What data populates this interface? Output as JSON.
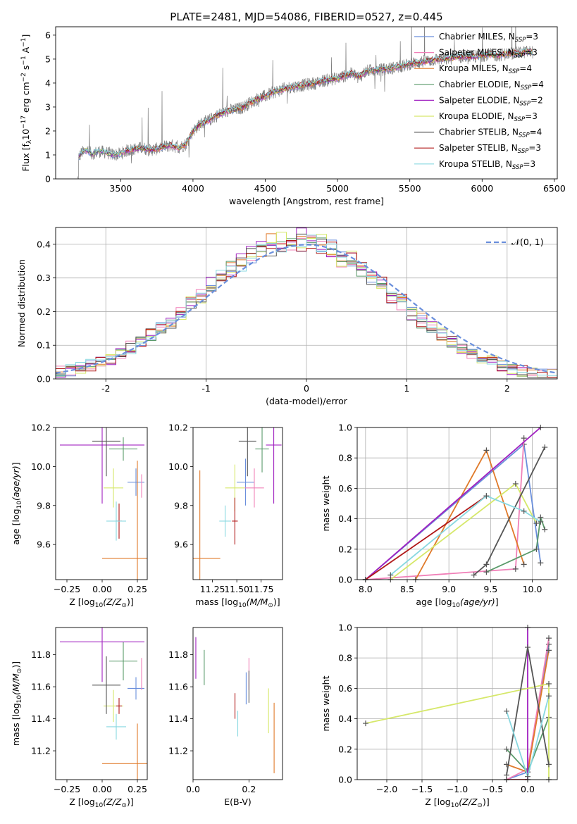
{
  "figure_title": "PLATE=2481, MJD=54086, FIBERID=0527, z=0.445",
  "colors": {
    "Chabrier MILES": "#6a8fdc",
    "Salpeter MILES": "#f080b8",
    "Kroupa MILES": "#e07a2a",
    "Chabrier ELODIE": "#5a9a6a",
    "Salpeter ELODIE": "#a020c0",
    "Kroupa ELODIE": "#d6e86a",
    "Chabrier STELIB": "#555555",
    "Salpeter STELIB": "#b01818",
    "Kroupa STELIB": "#88d8e0",
    "normal_curve": "#6a8fdc",
    "data_spectrum": "#7f7f7f"
  },
  "chart_data": [
    {
      "type": "line",
      "panel": "spectrum",
      "title": "PLATE=2481, MJD=54086, FIBERID=0527, z=0.445",
      "xlabel": "wavelength [Angstrom, rest frame]",
      "ylabel": "Flux [f_λ 10^-17 erg cm^-2 s^-1 A^-1]",
      "xlim": [
        3050,
        6520
      ],
      "ylim": [
        0,
        6.35
      ],
      "xticks": [
        3500,
        4000,
        4500,
        5000,
        5500,
        6000,
        6500
      ],
      "yticks": [
        0,
        1,
        2,
        3,
        4,
        5,
        6
      ],
      "legend_position": "upper-right",
      "series": [
        {
          "name": "Chabrier MILES, N_SSP=3",
          "model": "Chabrier MILES"
        },
        {
          "name": "Salpeter MILES, N_SSP=3",
          "model": "Salpeter MILES"
        },
        {
          "name": "Kroupa MILES, N_SSP=4",
          "model": "Kroupa MILES"
        },
        {
          "name": "Chabrier ELODIE, N_SSP=4",
          "model": "Chabrier ELODIE"
        },
        {
          "name": "Salpeter ELODIE, N_SSP=2",
          "model": "Salpeter ELODIE"
        },
        {
          "name": "Kroupa ELODIE, N_SSP=3",
          "model": "Kroupa ELODIE"
        },
        {
          "name": "Chabrier STELIB, N_SSP=4",
          "model": "Chabrier STELIB"
        },
        {
          "name": "Salpeter STELIB, N_SSP=3",
          "model": "Salpeter STELIB"
        },
        {
          "name": "Kroupa STELIB, N_SSP=3",
          "model": "Kroupa STELIB"
        }
      ],
      "continuum": {
        "x": [
          3200,
          3210,
          3230,
          3260,
          3300,
          3350,
          3400,
          3450,
          3500,
          3550,
          3600,
          3650,
          3700,
          3750,
          3800,
          3850,
          3900,
          3950,
          4000,
          4050,
          4100,
          4150,
          4200,
          4250,
          4300,
          4350,
          4400,
          4450,
          4500,
          4550,
          4600,
          4650,
          4700,
          4750,
          4800,
          4850,
          4900,
          4950,
          5000,
          5050,
          5100,
          5150,
          5200,
          5250,
          5300,
          5350,
          5400,
          5450,
          5500,
          5550,
          5600,
          5650,
          5700,
          5750,
          5800,
          5850,
          5900,
          5950,
          6000,
          6050,
          6100,
          6150,
          6200,
          6250,
          6300,
          6350
        ],
        "y": [
          0,
          0.9,
          1.1,
          1.2,
          1.05,
          1.15,
          1.1,
          1.0,
          1.05,
          1.2,
          1.25,
          1.3,
          1.2,
          1.25,
          1.35,
          1.4,
          1.3,
          1.45,
          2.0,
          2.3,
          2.4,
          2.6,
          2.75,
          2.85,
          2.9,
          3.0,
          3.2,
          3.35,
          3.45,
          3.6,
          3.7,
          3.8,
          3.85,
          3.9,
          3.95,
          4.0,
          4.1,
          4.15,
          4.2,
          4.3,
          4.4,
          4.25,
          4.5,
          4.55,
          4.55,
          4.6,
          4.65,
          4.7,
          4.8,
          4.85,
          4.9,
          4.95,
          5.0,
          5.0,
          5.05,
          5.1,
          5.1,
          5.1,
          5.15,
          5.2,
          5.15,
          5.2,
          5.25,
          5.25,
          5.3,
          5.3
        ]
      }
    },
    {
      "type": "bar",
      "panel": "residual-histogram",
      "xlabel": "(data-model)/error",
      "ylabel": "Normed distribution",
      "xlim": [
        -2.5,
        2.5
      ],
      "ylim": [
        0,
        0.45
      ],
      "xticks": [
        -2,
        -1,
        0,
        1,
        2
      ],
      "yticks": [
        0.0,
        0.1,
        0.2,
        0.3,
        0.4
      ],
      "grid": true,
      "legend_position": "upper-right",
      "legend": "𝒩(0, 1)",
      "normal_curve": {
        "mean": 0,
        "std": 1
      },
      "bins": {
        "start": -2.5,
        "width": 0.1,
        "count": 50
      }
    },
    {
      "type": "scatter",
      "panel": "age-vs-Z",
      "xlabel": "Z [log10(Z/Z⊙)]",
      "ylabel": "age [log10(age/yr)]",
      "xlim": [
        -0.33,
        0.32
      ],
      "ylim": [
        9.42,
        10.2
      ],
      "xticks": [
        -0.25,
        0.0,
        0.25
      ],
      "xtick_labels": [
        "−0.25",
        "0.00",
        "0.25"
      ],
      "yticks": [
        9.6,
        9.8,
        10.0,
        10.2
      ],
      "ytick_labels": [
        "9.6",
        "9.8",
        "10.0",
        "10.2"
      ],
      "points": [
        {
          "model": "Chabrier MILES",
          "x": 0.24,
          "y": 9.92,
          "xerr": 0.06,
          "yerr": 0.07
        },
        {
          "model": "Salpeter MILES",
          "x": 0.28,
          "y": 9.9,
          "xerr": 0.0,
          "yerr": 0.06
        },
        {
          "model": "Kroupa MILES",
          "x": 0.25,
          "y": 9.53,
          "xerr": 0.25,
          "yerr": 0.5
        },
        {
          "model": "Chabrier ELODIE",
          "x": 0.15,
          "y": 10.09,
          "xerr": 0.1,
          "yerr": 0.06
        },
        {
          "model": "Salpeter ELODIE",
          "x": 0.0,
          "y": 10.11,
          "xerr": 0.3,
          "yerr": 0.3
        },
        {
          "model": "Kroupa ELODIE",
          "x": 0.08,
          "y": 9.89,
          "xerr": 0.07,
          "yerr": 0.1
        },
        {
          "model": "Chabrier STELIB",
          "x": 0.03,
          "y": 10.13,
          "xerr": 0.1,
          "yerr": 0.18
        },
        {
          "model": "Salpeter STELIB",
          "x": 0.12,
          "y": 9.72,
          "xerr": 0.02,
          "yerr": 0.09
        },
        {
          "model": "Kroupa STELIB",
          "x": 0.1,
          "y": 9.72,
          "xerr": 0.07,
          "yerr": 0.1
        }
      ]
    },
    {
      "type": "scatter",
      "panel": "age-vs-mass",
      "xlabel": "mass [log10(M/M⊙)]",
      "ylabel": "",
      "xlim": [
        11.05,
        11.97
      ],
      "ylim": [
        9.42,
        10.2
      ],
      "xticks": [
        11.25,
        11.5,
        11.75
      ],
      "xtick_labels": [
        "11.25",
        "11.50",
        "11.75"
      ],
      "yticks": [
        9.6,
        9.8,
        10.0,
        10.2
      ],
      "ytick_labels": [
        "9.6",
        "9.8",
        "10.0",
        "10.2"
      ],
      "points": [
        {
          "model": "Chabrier MILES",
          "x": 11.59,
          "y": 9.92,
          "xerr": 0.09,
          "yerr": 0.12
        },
        {
          "model": "Salpeter MILES",
          "x": 11.68,
          "y": 9.89,
          "xerr": 0.1,
          "yerr": 0.1
        },
        {
          "model": "Kroupa MILES",
          "x": 11.12,
          "y": 9.53,
          "xerr": 0.21,
          "yerr": 0.45
        },
        {
          "model": "Chabrier ELODIE",
          "x": 11.76,
          "y": 10.09,
          "xerr": 0.07,
          "yerr": 0.12
        },
        {
          "model": "Salpeter ELODIE",
          "x": 11.88,
          "y": 10.11,
          "xerr": 0.08,
          "yerr": 0.3
        },
        {
          "model": "Kroupa ELODIE",
          "x": 11.48,
          "y": 9.89,
          "xerr": 0.1,
          "yerr": 0.12
        },
        {
          "model": "Chabrier STELIB",
          "x": 11.61,
          "y": 10.13,
          "xerr": 0.09,
          "yerr": 0.18
        },
        {
          "model": "Salpeter STELIB",
          "x": 11.48,
          "y": 9.72,
          "xerr": 0.03,
          "yerr": 0.12
        },
        {
          "model": "Kroupa STELIB",
          "x": 11.38,
          "y": 9.72,
          "xerr": 0.06,
          "yerr": 0.08
        }
      ]
    },
    {
      "type": "line",
      "panel": "mass-weight-vs-age",
      "xlabel": "age [log10(age/yr)]",
      "ylabel": "mass weight",
      "xlim": [
        7.9,
        10.3
      ],
      "ylim": [
        0,
        1
      ],
      "xticks": [
        8.0,
        8.5,
        9.0,
        9.5,
        10.0
      ],
      "xtick_labels": [
        "8.0",
        "8.5",
        "9.0",
        "9.5",
        "10.0"
      ],
      "yticks": [
        0.0,
        0.2,
        0.4,
        0.6,
        0.8,
        1.0
      ],
      "ytick_labels": [
        "0.0",
        "0.2",
        "0.4",
        "0.6",
        "0.8",
        "1.0"
      ],
      "grid": true,
      "series": [
        {
          "model": "Chabrier MILES",
          "x": [
            8.0,
            9.9,
            10.1
          ],
          "y": [
            0.0,
            0.89,
            0.11
          ]
        },
        {
          "model": "Salpeter MILES",
          "x": [
            8.0,
            9.8,
            9.9
          ],
          "y": [
            0.0,
            0.07,
            0.93
          ]
        },
        {
          "model": "Kroupa MILES",
          "x": [
            8.6,
            9.45,
            9.9
          ],
          "y": [
            0.0,
            0.85,
            0.1
          ]
        },
        {
          "model": "Chabrier ELODIE",
          "x": [
            9.45,
            10.05,
            10.1,
            10.15
          ],
          "y": [
            0.05,
            0.2,
            0.41,
            0.33
          ]
        },
        {
          "model": "Salpeter ELODIE",
          "x": [
            8.0,
            10.1
          ],
          "y": [
            0.0,
            1.0
          ]
        },
        {
          "model": "Kroupa ELODIE",
          "x": [
            8.3,
            9.8,
            10.05
          ],
          "y": [
            0.0,
            0.63,
            0.37
          ]
        },
        {
          "model": "Chabrier STELIB",
          "x": [
            9.3,
            9.45,
            10.15
          ],
          "y": [
            0.03,
            0.1,
            0.87
          ]
        },
        {
          "model": "Salpeter STELIB",
          "x": [
            8.0,
            9.45
          ],
          "y": [
            0.0,
            0.55
          ]
        },
        {
          "model": "Kroupa STELIB",
          "x": [
            8.3,
            9.45,
            9.9,
            10.1
          ],
          "y": [
            0.03,
            0.55,
            0.45,
            0.38
          ]
        }
      ]
    },
    {
      "type": "scatter",
      "panel": "mass-vs-Z",
      "xlabel": "Z [log10(Z/Z⊙)]",
      "ylabel": "mass [log10(M/M⊙)]",
      "xlim": [
        -0.33,
        0.32
      ],
      "ylim": [
        11.02,
        11.97
      ],
      "xticks": [
        -0.25,
        0.0,
        0.25
      ],
      "xtick_labels": [
        "−0.25",
        "0.00",
        "0.25"
      ],
      "yticks": [
        11.2,
        11.4,
        11.6,
        11.8
      ],
      "ytick_labels": [
        "11.2",
        "11.4",
        "11.6",
        "11.8"
      ],
      "points": [
        {
          "model": "Chabrier MILES",
          "x": 0.24,
          "y": 11.59,
          "xerr": 0.06,
          "yerr": 0.07
        },
        {
          "model": "Salpeter MILES",
          "x": 0.28,
          "y": 11.68,
          "xerr": 0.0,
          "yerr": 0.1
        },
        {
          "model": "Kroupa MILES",
          "x": 0.25,
          "y": 11.12,
          "xerr": 0.25,
          "yerr": 0.25
        },
        {
          "model": "Chabrier ELODIE",
          "x": 0.15,
          "y": 11.76,
          "xerr": 0.1,
          "yerr": 0.12
        },
        {
          "model": "Salpeter ELODIE",
          "x": 0.0,
          "y": 11.88,
          "xerr": 0.3,
          "yerr": 0.25
        },
        {
          "model": "Kroupa ELODIE",
          "x": 0.08,
          "y": 11.48,
          "xerr": 0.07,
          "yerr": 0.1
        },
        {
          "model": "Chabrier STELIB",
          "x": 0.03,
          "y": 11.61,
          "xerr": 0.1,
          "yerr": 0.18
        },
        {
          "model": "Salpeter STELIB",
          "x": 0.12,
          "y": 11.48,
          "xerr": 0.02,
          "yerr": 0.05
        },
        {
          "model": "Kroupa STELIB",
          "x": 0.1,
          "y": 11.35,
          "xerr": 0.07,
          "yerr": 0.08
        }
      ]
    },
    {
      "type": "scatter",
      "panel": "mass-vs-EBV",
      "xlabel": "E(B-V)",
      "ylabel": "",
      "xlim": [
        0.0,
        0.32
      ],
      "ylim": [
        11.02,
        11.97
      ],
      "xticks": [
        0.0,
        0.2
      ],
      "xtick_labels": [
        "0.0",
        "0.2"
      ],
      "yticks": [
        11.2,
        11.4,
        11.6,
        11.8
      ],
      "ytick_labels": [
        "11.2",
        "11.4",
        "11.6",
        "11.8"
      ],
      "points": [
        {
          "model": "Chabrier MILES",
          "x": 0.19,
          "y": 11.59,
          "yerr": 0.1
        },
        {
          "model": "Salpeter MILES",
          "x": 0.2,
          "y": 11.68,
          "yerr": 0.1
        },
        {
          "model": "Kroupa MILES",
          "x": 0.29,
          "y": 11.28,
          "yerr": 0.22
        },
        {
          "model": "Chabrier ELODIE",
          "x": 0.04,
          "y": 11.72,
          "yerr": 0.11
        },
        {
          "model": "Salpeter ELODIE",
          "x": 0.01,
          "y": 11.78,
          "yerr": 0.13
        },
        {
          "model": "Kroupa ELODIE",
          "x": 0.27,
          "y": 11.45,
          "yerr": 0.14
        },
        {
          "model": "Chabrier STELIB",
          "x": 0.2,
          "y": 11.6,
          "yerr": 0.1
        },
        {
          "model": "Salpeter STELIB",
          "x": 0.15,
          "y": 11.48,
          "yerr": 0.08
        },
        {
          "model": "Kroupa STELIB",
          "x": 0.16,
          "y": 11.37,
          "yerr": 0.08
        }
      ]
    },
    {
      "type": "line",
      "panel": "mass-weight-vs-Z",
      "xlabel": "Z [log10(Z/Z⊙)]",
      "ylabel": "mass weight",
      "xlim": [
        -2.42,
        0.42
      ],
      "ylim": [
        0,
        1
      ],
      "xticks": [
        -2.0,
        -1.5,
        -1.0,
        -0.5,
        0.0
      ],
      "xtick_labels": [
        "−2.0",
        "−1.5",
        "−1.0",
        "−0.5",
        "0.0"
      ],
      "yticks": [
        0.0,
        0.2,
        0.4,
        0.6,
        0.8,
        1.0
      ],
      "ytick_labels": [
        "0.0",
        "0.2",
        "0.4",
        "0.6",
        "0.8",
        "1.0"
      ],
      "grid": true,
      "series": [
        {
          "model": "Chabrier MILES",
          "x": [
            -0.3,
            0.0,
            0.3
          ],
          "y": [
            0.0,
            0.05,
            0.89
          ]
        },
        {
          "model": "Salpeter MILES",
          "x": [
            -0.3,
            0.0,
            0.3
          ],
          "y": [
            0.0,
            0.07,
            0.93
          ]
        },
        {
          "model": "Kroupa MILES",
          "x": [
            -0.3,
            0.0,
            0.3
          ],
          "y": [
            0.1,
            0.05,
            0.85
          ]
        },
        {
          "model": "Chabrier ELODIE",
          "x": [
            -0.3,
            0.0,
            0.3
          ],
          "y": [
            0.2,
            0.05,
            0.41
          ]
        },
        {
          "model": "Salpeter ELODIE",
          "x": [
            0.0,
            0.0
          ],
          "y": [
            0.0,
            1.0
          ]
        },
        {
          "model": "Kroupa ELODIE",
          "x": [
            -2.3,
            0.3,
            0.3
          ],
          "y": [
            0.37,
            0.63,
            0.0
          ]
        },
        {
          "model": "Chabrier STELIB",
          "x": [
            -0.3,
            0.0,
            0.3
          ],
          "y": [
            0.03,
            0.87,
            0.1
          ]
        },
        {
          "model": "Salpeter STELIB",
          "x": [
            -0.3,
            0.0
          ],
          "y": [
            0.0,
            0.0
          ]
        },
        {
          "model": "Kroupa STELIB",
          "x": [
            -0.3,
            0.0,
            0.3
          ],
          "y": [
            0.45,
            0.02,
            0.55
          ]
        }
      ]
    }
  ]
}
